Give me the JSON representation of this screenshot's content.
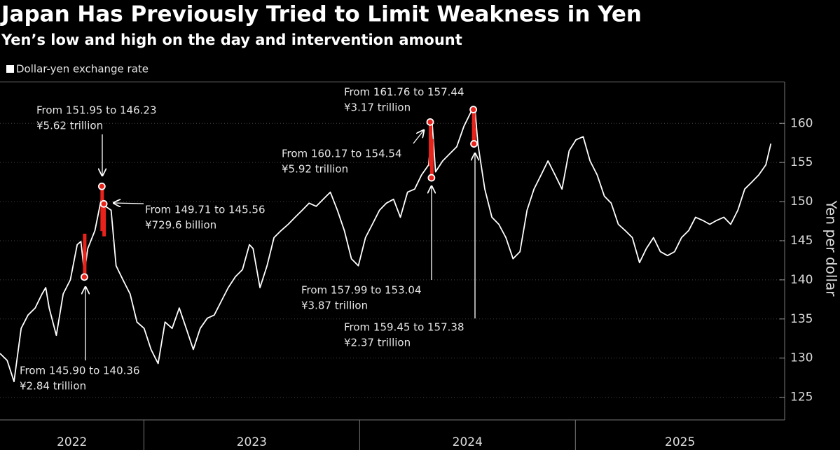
{
  "chart_data": {
    "type": "line",
    "title": "Japan Has Previously Tried to Limit Weakness in Yen",
    "subtitle": "Yen’s low and high on the day and intervention amount",
    "y_label": "Yen per dollar",
    "categories": [
      "2022",
      "2023",
      "2024",
      "2025"
    ],
    "xlim": [
      2022.333,
      2025.97
    ],
    "ylim": [
      122.1,
      165.3
    ],
    "yticks": [
      125,
      130,
      135,
      140,
      145,
      150,
      155,
      160
    ],
    "series": [
      {
        "name": "Dollar-yen exchange rate",
        "color": "#ffffff",
        "x": [
          2022.333,
          2022.366,
          2022.398,
          2022.431,
          2022.463,
          2022.496,
          2022.528,
          2022.545,
          2022.561,
          2022.594,
          2022.626,
          2022.659,
          2022.691,
          2022.708,
          2022.724,
          2022.74,
          2022.773,
          2022.805,
          2022.822,
          2022.848,
          2022.871,
          2022.903,
          2022.936,
          2022.968,
          2023.001,
          2023.033,
          2023.066,
          2023.098,
          2023.131,
          2023.164,
          2023.196,
          2023.229,
          2023.261,
          2023.294,
          2023.326,
          2023.359,
          2023.391,
          2023.424,
          2023.457,
          2023.489,
          2023.506,
          2023.538,
          2023.571,
          2023.603,
          2023.636,
          2023.669,
          2023.701,
          2023.734,
          2023.766,
          2023.799,
          2023.831,
          2023.864,
          2023.897,
          2023.929,
          2023.962,
          2023.994,
          2024.027,
          2024.059,
          2024.092,
          2024.124,
          2024.157,
          2024.189,
          2024.222,
          2024.255,
          2024.287,
          2024.32,
          2024.336,
          2024.352,
          2024.385,
          2024.417,
          2024.45,
          2024.483,
          2024.515,
          2024.535,
          2024.548,
          2024.58,
          2024.613,
          2024.645,
          2024.678,
          2024.711,
          2024.743,
          2024.776,
          2024.808,
          2024.841,
          2024.873,
          2024.906,
          2024.938,
          2024.971,
          2025.003,
          2025.036,
          2025.068,
          2025.101,
          2025.134,
          2025.166,
          2025.199,
          2025.231,
          2025.264,
          2025.297,
          2025.329,
          2025.362,
          2025.394,
          2025.427,
          2025.46,
          2025.492,
          2025.525,
          2025.557,
          2025.59,
          2025.623,
          2025.655,
          2025.688,
          2025.72,
          2025.753,
          2025.785,
          2025.818,
          2025.85,
          2025.883,
          2025.906
        ],
        "values": [
          130.6,
          129.7,
          127,
          133.8,
          135.5,
          136.4,
          138.2,
          139,
          136.4,
          132.9,
          138.2,
          140,
          144.5,
          144.9,
          140.9,
          144,
          146.3,
          150.7,
          149.4,
          148.9,
          141.8,
          140,
          138.2,
          134.6,
          133.8,
          131.1,
          129.3,
          134.6,
          133.8,
          136.4,
          133.8,
          131.1,
          133.8,
          135.1,
          135.5,
          137.3,
          139,
          140.4,
          141.3,
          144.5,
          144,
          139,
          141.8,
          145.4,
          146.3,
          147.1,
          148,
          148.9,
          149.8,
          149.4,
          150.3,
          151.2,
          148.9,
          146.3,
          142.7,
          141.8,
          145.4,
          147.1,
          148.9,
          149.8,
          150.3,
          148,
          151.2,
          151.6,
          153.4,
          154.7,
          160.1,
          153.8,
          155.2,
          156.1,
          157,
          159.6,
          161.4,
          161.7,
          157.4,
          151.6,
          148,
          147.1,
          145.4,
          142.7,
          143.6,
          148.9,
          151.6,
          153.4,
          155.2,
          153.4,
          151.6,
          156.5,
          157.9,
          158.3,
          155.2,
          153.4,
          150.7,
          149.8,
          147.1,
          146.3,
          145.4,
          142.2,
          144,
          145.4,
          143.6,
          143.1,
          143.6,
          145.4,
          146.3,
          148,
          147.6,
          147.1,
          147.6,
          148,
          147.1,
          148.9,
          151.6,
          152.5,
          153.4,
          154.7,
          157.4
        ]
      }
    ],
    "intervention_color": "#e8231b",
    "interventions": [
      {
        "x": 2022.724,
        "high": 145.9,
        "low": 140.36,
        "label": "From 145.90 to 140.36",
        "amount": "¥2.84 trillion"
      },
      {
        "x": 2022.805,
        "high": 151.95,
        "low": 146.23,
        "label": "From 151.95 to 146.23",
        "amount": "¥5.62 trillion"
      },
      {
        "x": 2022.814,
        "high": 149.71,
        "low": 145.56,
        "label": "From 149.71 to 145.56",
        "amount": "¥729.6 billion"
      },
      {
        "x": 2024.327,
        "high": 160.17,
        "low": 154.54,
        "label": "From 160.17 to 154.54",
        "amount": "¥5.92 trillion"
      },
      {
        "x": 2024.333,
        "high": 157.99,
        "low": 153.04,
        "label": "From 157.99 to 153.04",
        "amount": "¥3.87 trillion"
      },
      {
        "x": 2024.527,
        "high": 161.76,
        "low": 157.44,
        "label": "From 161.76 to 157.44",
        "amount": "¥3.17 trillion"
      },
      {
        "x": 2024.53,
        "high": 159.45,
        "low": 157.38,
        "label": "From 159.45 to 157.38",
        "amount": "¥2.37 trillion"
      }
    ]
  }
}
